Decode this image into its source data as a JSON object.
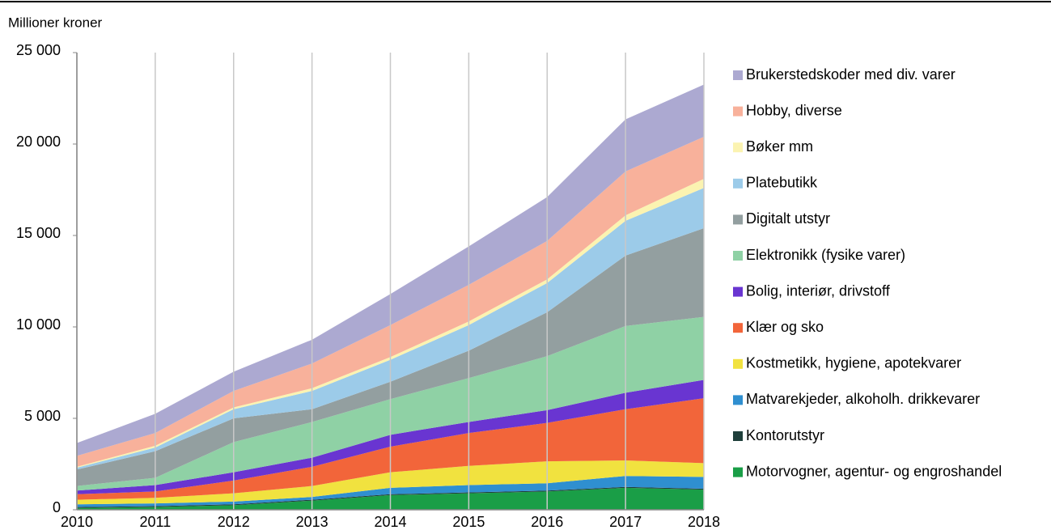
{
  "chart_data": {
    "type": "stacked_area",
    "y_label": "Millioner kroner",
    "x": [
      2010,
      2011,
      2012,
      2013,
      2014,
      2015,
      2016,
      2017,
      2018
    ],
    "xlim": [
      2010,
      2018
    ],
    "xticks": [
      2010,
      2011,
      2012,
      2013,
      2014,
      2015,
      2016,
      2017,
      2018
    ],
    "ylim": [
      0,
      25000
    ],
    "yticks": [
      0,
      {
        "value": 5000,
        "label": "5 000"
      },
      {
        "value": 10000,
        "label": "10 000"
      },
      {
        "value": 15000,
        "label": "15 000"
      },
      {
        "value": 20000,
        "label": "20 000"
      },
      {
        "value": 25000,
        "label": "25 000"
      }
    ],
    "grid": "x",
    "legend": "right",
    "series": [
      {
        "name": "Motorvogner, agentur- og engroshandel",
        "color": "#1a9e47",
        "values": [
          100,
          150,
          250,
          500,
          800,
          900,
          1000,
          1200,
          1100
        ]
      },
      {
        "name": "Kontorutstyr",
        "color": "#1f3f3b",
        "values": [
          50,
          50,
          50,
          50,
          50,
          50,
          50,
          50,
          50
        ]
      },
      {
        "name": "Matvarekjeder, alkoholh. drikkevarer",
        "color": "#2f8fd0",
        "values": [
          150,
          150,
          150,
          150,
          350,
          400,
          400,
          600,
          650
        ]
      },
      {
        "name": "Kostmetikk, hygiene, apotekvarer",
        "color": "#f1e23f",
        "values": [
          250,
          300,
          450,
          600,
          850,
          1050,
          1200,
          850,
          750
        ]
      },
      {
        "name": "Klær og sko",
        "color": "#f2653a",
        "values": [
          300,
          350,
          700,
          1050,
          1400,
          1800,
          2100,
          2800,
          3550
        ]
      },
      {
        "name": "Bolig, interiør, drivstoff",
        "color": "#6935d1",
        "values": [
          200,
          350,
          450,
          500,
          650,
          600,
          700,
          900,
          1000
        ]
      },
      {
        "name": "Elektronikk (fysike varer)",
        "color": "#8fd1a5",
        "values": [
          250,
          400,
          1650,
          1950,
          1950,
          2400,
          2950,
          3650,
          3450
        ]
      },
      {
        "name": "Digitalt utstyr",
        "color": "#939fa0",
        "values": [
          900,
          1450,
          1300,
          700,
          950,
          1500,
          2400,
          3850,
          4850
        ]
      },
      {
        "name": "Platebutikk",
        "color": "#9ccbe9",
        "values": [
          100,
          200,
          500,
          1000,
          1200,
          1400,
          1600,
          1900,
          2200
        ]
      },
      {
        "name": "Bøker mm",
        "color": "#fbf3b1",
        "values": [
          50,
          100,
          100,
          150,
          150,
          200,
          200,
          300,
          500
        ]
      },
      {
        "name": "Hobby, diverse",
        "color": "#f8b19b",
        "values": [
          600,
          700,
          900,
          1350,
          1750,
          2000,
          2100,
          2400,
          2300
        ]
      },
      {
        "name": "Brukerstedskoder med div. varer",
        "color": "#aca9d1",
        "values": [
          700,
          1050,
          1050,
          1300,
          1700,
          2100,
          2400,
          2850,
          2850
        ]
      }
    ]
  }
}
